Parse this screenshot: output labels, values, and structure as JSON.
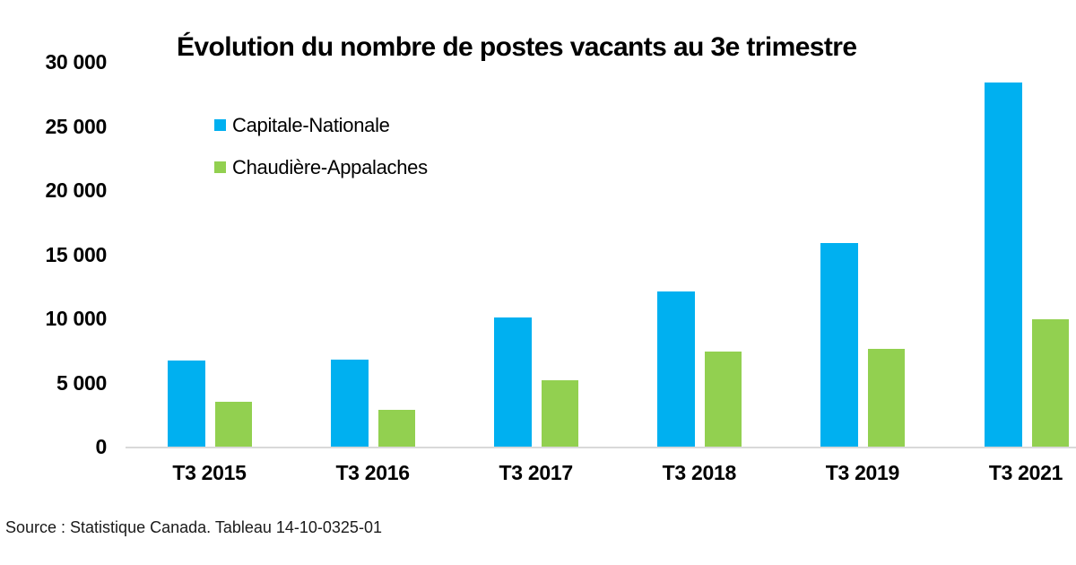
{
  "chart_data": {
    "type": "bar",
    "title": "Évolution du nombre de postes vacants au 3e trimestre",
    "categories": [
      "T3 2015",
      "T3 2016",
      "T3 2017",
      "T3 2018",
      "T3 2019",
      "T3 2021"
    ],
    "series": [
      {
        "name": "Capitale-Nationale",
        "color": "#00B0F0",
        "values": [
          6700,
          6800,
          10100,
          12100,
          15900,
          28400
        ]
      },
      {
        "name": "Chaudière-Appalaches",
        "color": "#92D050",
        "values": [
          3500,
          2900,
          5200,
          7400,
          7600,
          9900
        ]
      }
    ],
    "ylim": [
      0,
      30000
    ],
    "yticks": [
      {
        "value": 30000,
        "label": "30 000"
      },
      {
        "value": 25000,
        "label": "25 000"
      },
      {
        "value": 20000,
        "label": "20 000"
      },
      {
        "value": 15000,
        "label": "15 000"
      },
      {
        "value": 10000,
        "label": "10 000"
      },
      {
        "value": 5000,
        "label": "5 000"
      },
      {
        "value": 0,
        "label": "0"
      }
    ],
    "grid": false,
    "legend_position": "inside-top-left",
    "axis_line_color": "#D9D9D9",
    "text_color": "#000000"
  },
  "source_note": "Source : Statistique Canada. Tableau 14-10-0325-01"
}
